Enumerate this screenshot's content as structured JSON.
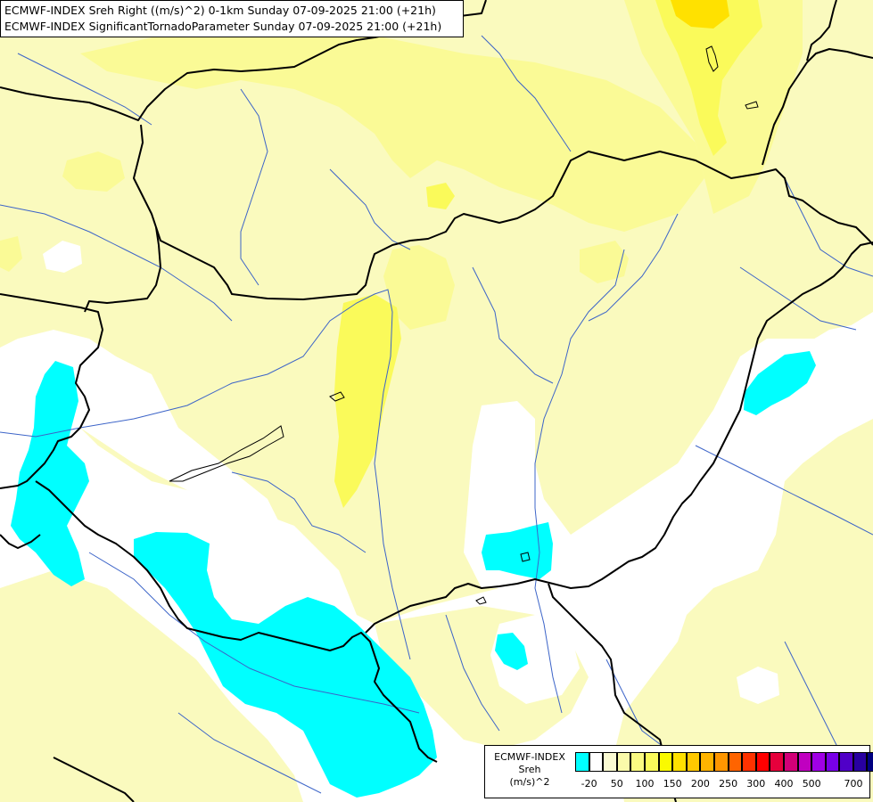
{
  "title": {
    "line1": "ECMWF-INDEX Sreh Right ((m/s)^2) 0-1km Sunday 07-09-2025 21:00 (+21h)",
    "line2": "ECMWF-INDEX SignificantTornadoParameter Sunday 07-09-2025 21:00 (+21h)"
  },
  "legend": {
    "model": "ECMWF-INDEX",
    "variable": "Sreh",
    "unit": "(m/s)^2",
    "colors": [
      "#00ffff",
      "#ffffff",
      "#fafad2",
      "#fafaaa",
      "#fafa82",
      "#fafa5a",
      "#fafa00",
      "#ffe000",
      "#ffc800",
      "#ffb400",
      "#ff9600",
      "#ff6400",
      "#ff3200",
      "#ff0000",
      "#e6003c",
      "#d20078",
      "#c000c0",
      "#a000e6",
      "#7800e6",
      "#5000c8",
      "#2800a0",
      "#000080"
    ],
    "tick_labels": [
      "-20",
      "50",
      "100",
      "150",
      "200",
      "250",
      "300",
      "400",
      "500",
      "700"
    ]
  },
  "colors": {
    "cyan": "#00ffff",
    "pale_yellow": "#fafabe",
    "light_yellow": "#fafa96",
    "yellow": "#fafa5a",
    "strong_yellow": "#ffe100",
    "white": "#ffffff",
    "border": "#000000",
    "river": "#3c64c8"
  }
}
